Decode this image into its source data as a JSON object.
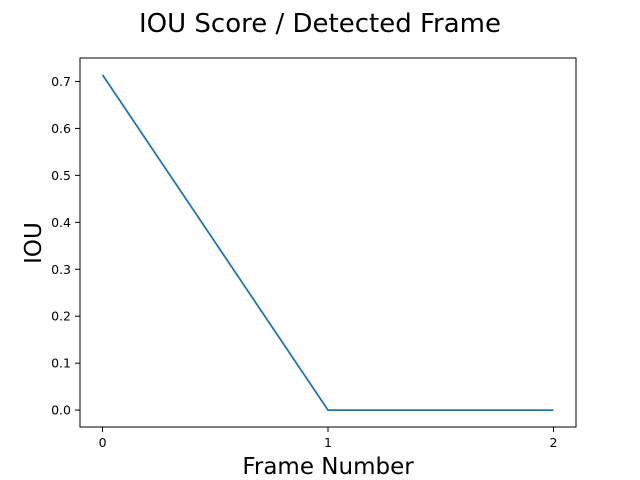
{
  "chart_data": {
    "type": "line",
    "title": "IOU Score / Detected Frame",
    "xlabel": "Frame Number",
    "ylabel": "IOU",
    "x": [
      0,
      1,
      2
    ],
    "xticks": [
      "0",
      "1",
      "2"
    ],
    "yticks": [
      "0.0",
      "0.1",
      "0.2",
      "0.3",
      "0.4",
      "0.5",
      "0.6",
      "0.7"
    ],
    "xlim": [
      -0.1,
      2.1
    ],
    "ylim": [
      -0.036,
      0.75
    ],
    "grid": false,
    "series": [
      {
        "values": [
          0.714,
          0.0,
          0.0
        ],
        "color": "#1f77b4"
      }
    ]
  }
}
